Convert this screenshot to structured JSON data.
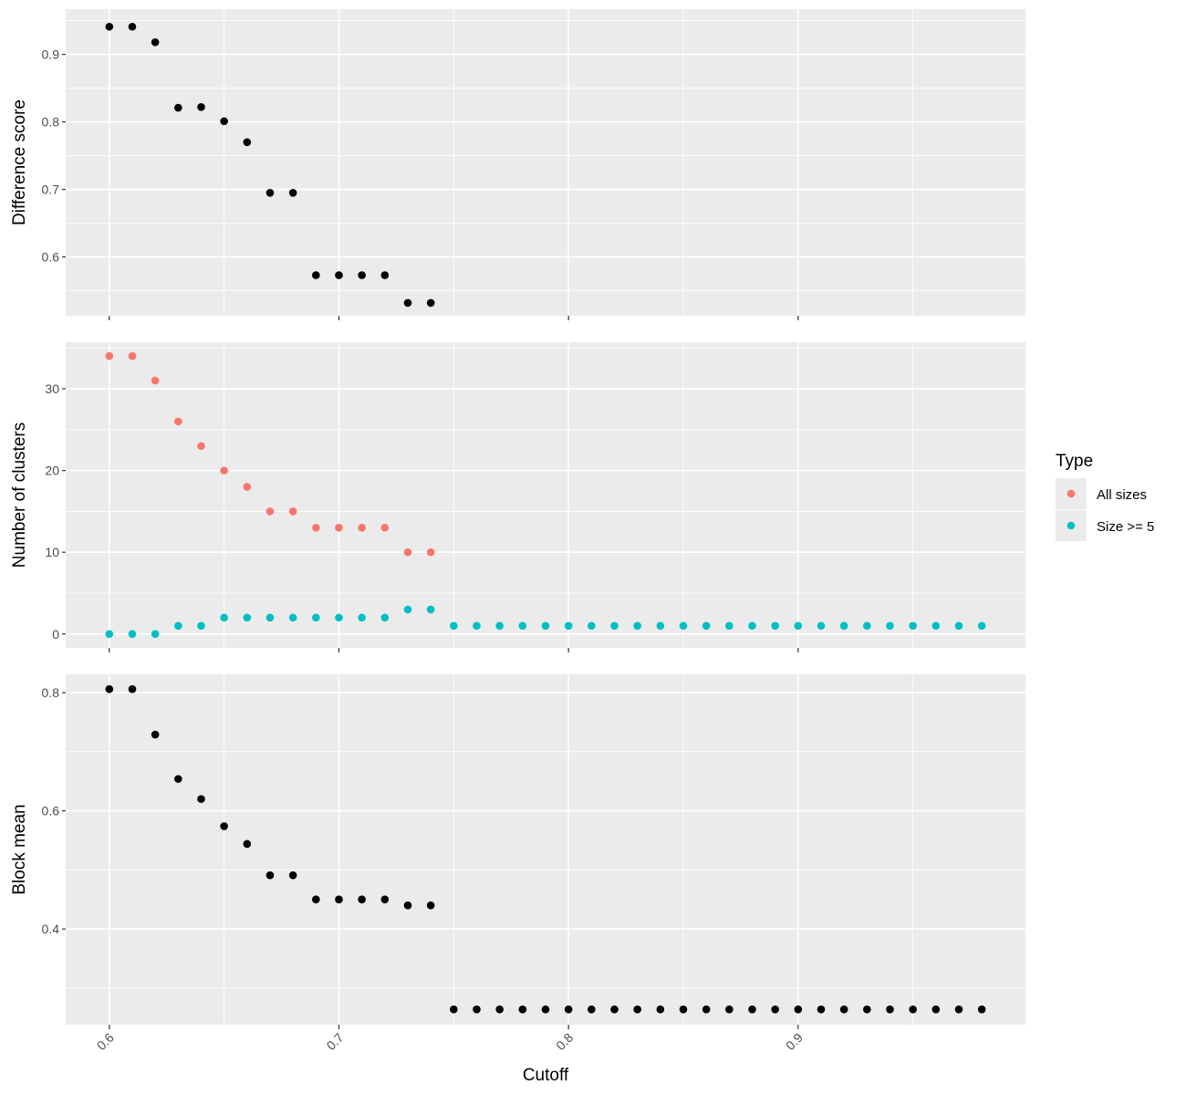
{
  "chart_data": {
    "type": "scatter",
    "xlabel": "Cutoff",
    "x_ticks": [
      "0.6",
      "0.7",
      "0.8",
      "0.9"
    ],
    "x_tick_values": [
      0.6,
      0.7,
      0.8,
      0.9
    ],
    "xlim": [
      0.581,
      0.999
    ],
    "grid": true,
    "colors": {
      "panel_bg": "#EBEBEB",
      "grid": "#FFFFFF",
      "point_default": "#000000",
      "all_sizes": "#F8766D",
      "size_ge_5": "#00BFC4"
    },
    "legend": {
      "title": "Type",
      "position": "right",
      "entries": [
        {
          "label": "All sizes",
          "color": "#F8766D"
        },
        {
          "label": "Size >= 5",
          "color": "#00BFC4"
        }
      ]
    },
    "panels": [
      {
        "ylabel": "Difference score",
        "ylim": [
          0.513,
          0.967
        ],
        "y_ticks": [
          "0.6",
          "0.7",
          "0.8",
          "0.9"
        ],
        "y_tick_values": [
          0.6,
          0.7,
          0.8,
          0.9
        ],
        "series": [
          {
            "color": "#000000",
            "x": [
              0.6,
              0.61,
              0.62,
              0.63,
              0.64,
              0.65,
              0.66,
              0.67,
              0.68,
              0.69,
              0.7,
              0.71,
              0.72,
              0.73,
              0.74
            ],
            "y": [
              0.941,
              0.941,
              0.918,
              0.821,
              0.822,
              0.801,
              0.77,
              0.695,
              0.695,
              0.573,
              0.573,
              0.573,
              0.573,
              0.532,
              0.532
            ]
          }
        ]
      },
      {
        "ylabel": "Number of clusters",
        "ylim": [
          -1.7,
          35.7
        ],
        "y_ticks": [
          "0",
          "10",
          "20",
          "30"
        ],
        "y_tick_values": [
          0,
          10,
          20,
          30
        ],
        "series": [
          {
            "name": "All sizes",
            "color": "#F8766D",
            "x": [
              0.6,
              0.61,
              0.62,
              0.63,
              0.64,
              0.65,
              0.66,
              0.67,
              0.68,
              0.69,
              0.7,
              0.71,
              0.72,
              0.73,
              0.74
            ],
            "y": [
              34,
              34,
              31,
              26,
              23,
              20,
              18,
              15,
              15,
              13,
              13,
              13,
              13,
              10,
              10
            ]
          },
          {
            "name": "Size >= 5",
            "color": "#00BFC4",
            "x": [
              0.6,
              0.61,
              0.62,
              0.63,
              0.64,
              0.65,
              0.66,
              0.67,
              0.68,
              0.69,
              0.7,
              0.71,
              0.72,
              0.73,
              0.74,
              0.75,
              0.76,
              0.77,
              0.78,
              0.79,
              0.8,
              0.81,
              0.82,
              0.83,
              0.84,
              0.85,
              0.86,
              0.87,
              0.88,
              0.89,
              0.9,
              0.91,
              0.92,
              0.93,
              0.94,
              0.95,
              0.96,
              0.97,
              0.98
            ],
            "y": [
              0,
              0,
              0,
              1,
              1,
              2,
              2,
              2,
              2,
              2,
              2,
              2,
              2,
              3,
              3,
              1,
              1,
              1,
              1,
              1,
              1,
              1,
              1,
              1,
              1,
              1,
              1,
              1,
              1,
              1,
              1,
              1,
              1,
              1,
              1,
              1,
              1,
              1,
              1
            ]
          }
        ]
      },
      {
        "ylabel": "Block mean",
        "ylim": [
          0.238,
          0.831
        ],
        "y_ticks": [
          "0.4",
          "0.6",
          "0.8"
        ],
        "y_tick_values": [
          0.4,
          0.6,
          0.8
        ],
        "series": [
          {
            "color": "#000000",
            "x": [
              0.6,
              0.61,
              0.62,
              0.63,
              0.64,
              0.65,
              0.66,
              0.67,
              0.68,
              0.69,
              0.7,
              0.71,
              0.72,
              0.73,
              0.74,
              0.75,
              0.76,
              0.77,
              0.78,
              0.79,
              0.8,
              0.81,
              0.82,
              0.83,
              0.84,
              0.85,
              0.86,
              0.87,
              0.88,
              0.89,
              0.9,
              0.91,
              0.92,
              0.93,
              0.94,
              0.95,
              0.96,
              0.97,
              0.98
            ],
            "y": [
              0.806,
              0.806,
              0.729,
              0.654,
              0.62,
              0.574,
              0.544,
              0.491,
              0.491,
              0.45,
              0.45,
              0.45,
              0.45,
              0.44,
              0.44,
              0.264,
              0.264,
              0.264,
              0.264,
              0.264,
              0.264,
              0.264,
              0.264,
              0.264,
              0.264,
              0.264,
              0.264,
              0.264,
              0.264,
              0.264,
              0.264,
              0.264,
              0.264,
              0.264,
              0.264,
              0.264,
              0.264,
              0.264,
              0.264
            ]
          }
        ]
      }
    ]
  }
}
